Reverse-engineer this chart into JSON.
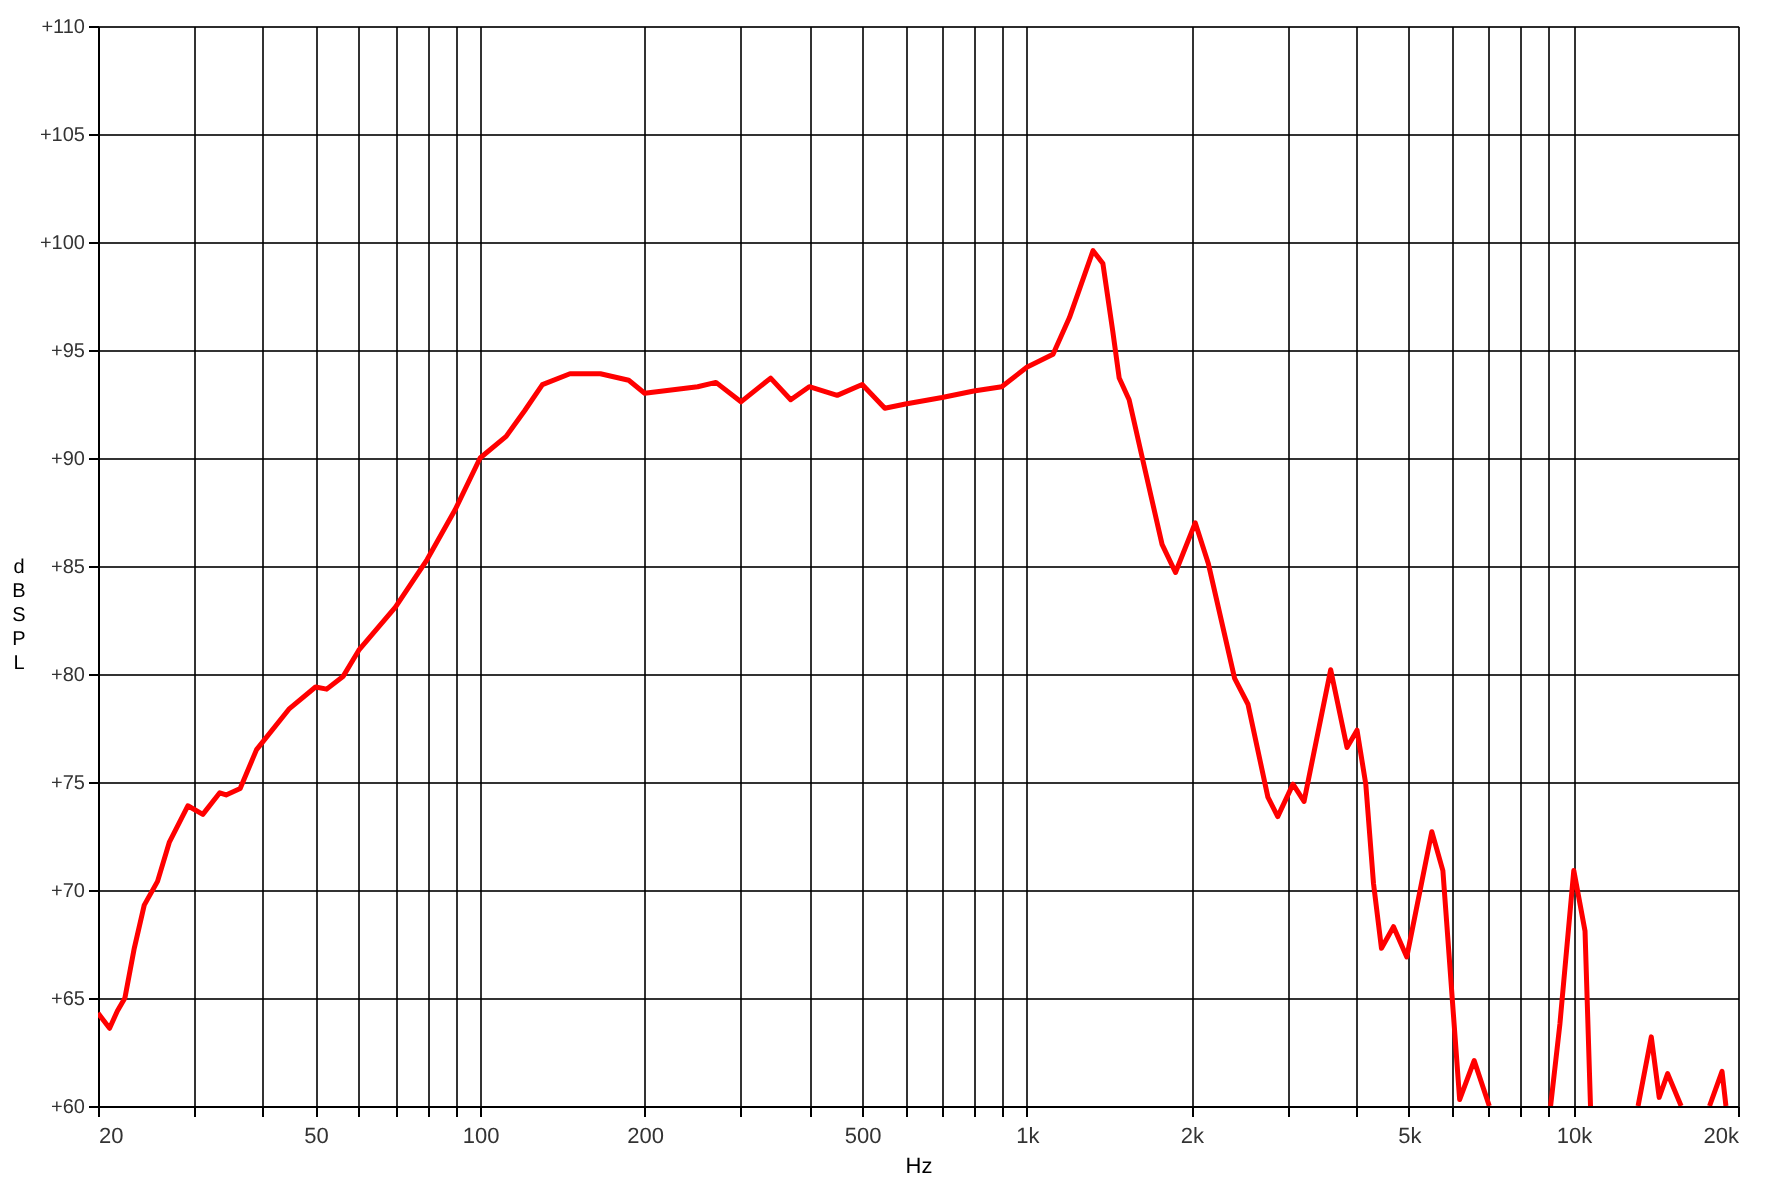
{
  "chart_data": {
    "type": "line",
    "xlabel": "Hz",
    "ylabel": "dB SPL",
    "log": "x",
    "grid": true,
    "legend": false,
    "marker": "none",
    "line_style": "solid",
    "xlim": [
      20,
      20000
    ],
    "ylim": [
      60,
      110
    ],
    "xticks": [
      {
        "value": 20,
        "label": "20"
      },
      {
        "value": 30,
        "label": null
      },
      {
        "value": 40,
        "label": null
      },
      {
        "value": 50,
        "label": "50"
      },
      {
        "value": 60,
        "label": null
      },
      {
        "value": 70,
        "label": null
      },
      {
        "value": 80,
        "label": null
      },
      {
        "value": 90,
        "label": null
      },
      {
        "value": 100,
        "label": "100"
      },
      {
        "value": 200,
        "label": "200"
      },
      {
        "value": 300,
        "label": null
      },
      {
        "value": 400,
        "label": null
      },
      {
        "value": 500,
        "label": "500"
      },
      {
        "value": 600,
        "label": null
      },
      {
        "value": 700,
        "label": null
      },
      {
        "value": 800,
        "label": null
      },
      {
        "value": 900,
        "label": null
      },
      {
        "value": 1000,
        "label": "1k"
      },
      {
        "value": 2000,
        "label": "2k"
      },
      {
        "value": 3000,
        "label": null
      },
      {
        "value": 4000,
        "label": null
      },
      {
        "value": 5000,
        "label": "5k"
      },
      {
        "value": 6000,
        "label": null
      },
      {
        "value": 7000,
        "label": null
      },
      {
        "value": 8000,
        "label": null
      },
      {
        "value": 9000,
        "label": null
      },
      {
        "value": 10000,
        "label": "10k"
      },
      {
        "value": 20000,
        "label": "20k"
      }
    ],
    "yticks": [
      {
        "value": 60,
        "label": "+60"
      },
      {
        "value": 65,
        "label": "+65"
      },
      {
        "value": 70,
        "label": "+70"
      },
      {
        "value": 75,
        "label": "+75"
      },
      {
        "value": 80,
        "label": "+80"
      },
      {
        "value": 85,
        "label": "+85"
      },
      {
        "value": 90,
        "label": "+90"
      },
      {
        "value": 95,
        "label": "+95"
      },
      {
        "value": 100,
        "label": "+100"
      },
      {
        "value": 105,
        "label": "+105"
      },
      {
        "value": 110,
        "label": "+110"
      }
    ],
    "series": [
      {
        "color": "#ff0000",
        "x": [
          20,
          21.0,
          21.7,
          22.4,
          23.3,
          24.3,
          25.7,
          27.0,
          29.2,
          31.1,
          33.4,
          34.3,
          36.4,
          39.0,
          44.8,
          50,
          52.4,
          56.2,
          60,
          70,
          80,
          90,
          100,
          111.6,
          120.7,
          130,
          146,
          166,
          187,
          200,
          250,
          270,
          300,
          340,
          370,
          400,
          450,
          500,
          550,
          600,
          700,
          800,
          900,
          1000,
          1117,
          1197,
          1322,
          1378,
          1436,
          1476,
          1539,
          1627,
          1768,
          1871,
          2033,
          2149,
          2400,
          2539,
          2761,
          2878,
          3069,
          3215,
          3597,
          3853,
          4019,
          4170,
          4308,
          4455,
          4687,
          4956,
          5507,
          5770,
          6192,
          6583,
          7016,
          8000,
          9083,
          9446,
          10015,
          10500,
          10745,
          12000,
          13130,
          13880,
          14350,
          14870,
          15740,
          17000,
          17740,
          18700,
          19010
        ],
        "values": [
          64.3,
          63.6,
          64.4,
          65.0,
          67.3,
          69.3,
          70.4,
          72.2,
          73.9,
          73.5,
          74.5,
          74.4,
          74.7,
          76.5,
          78.4,
          79.4,
          79.3,
          79.9,
          81.1,
          83.1,
          85.3,
          87.6,
          90.0,
          91.0,
          92.2,
          93.4,
          93.9,
          93.9,
          93.6,
          93.0,
          93.3,
          93.5,
          92.6,
          93.7,
          92.7,
          93.3,
          92.9,
          93.4,
          92.3,
          92.5,
          92.8,
          93.1,
          93.3,
          94.2,
          94.8,
          96.5,
          99.6,
          99.0,
          95.9,
          93.7,
          92.7,
          90.0,
          86.0,
          84.7,
          87.0,
          85.1,
          79.8,
          78.6,
          74.3,
          73.4,
          74.9,
          74.1,
          80.2,
          76.6,
          77.4,
          74.9,
          70.3,
          67.3,
          68.3,
          66.9,
          72.7,
          70.9,
          60.3,
          62.1,
          60,
          null,
          60,
          63.8,
          70.9,
          68.1,
          60,
          null,
          60,
          63.2,
          60.4,
          61.5,
          60,
          null,
          60,
          61.6,
          60
        ]
      }
    ]
  }
}
